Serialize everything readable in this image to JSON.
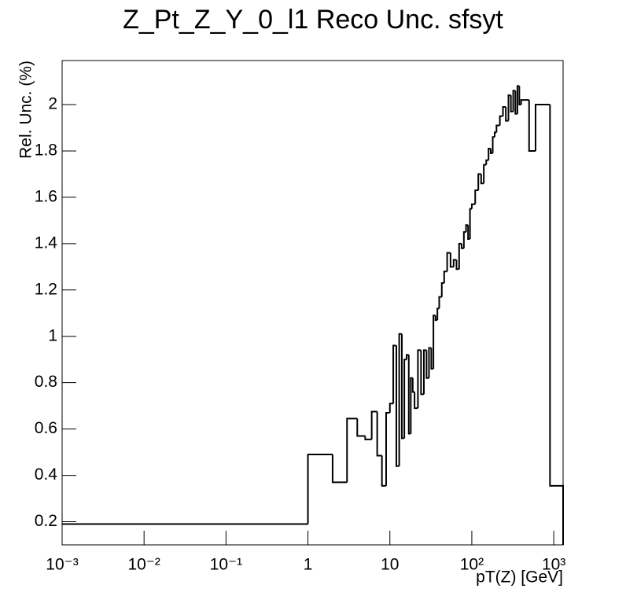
{
  "chart_data": {
    "type": "histogram",
    "title": "Z_Pt_Z_Y_0_l1 Reco Unc. sfsyt",
    "x_label": "pT(Z) [GeV]",
    "y_label": "Rel. Unc. (%)",
    "x_log": true,
    "color": "#000000",
    "bins": [
      0.001,
      1,
      2,
      3,
      4,
      5,
      6,
      7,
      8,
      9,
      10,
      11,
      12,
      13,
      14,
      15,
      16,
      17,
      18,
      19,
      20,
      22,
      24,
      26,
      28,
      30,
      32,
      34,
      36,
      38,
      40,
      43,
      46,
      50,
      55,
      60,
      65,
      70,
      75,
      80,
      85,
      90,
      95,
      100,
      110,
      120,
      130,
      140,
      150,
      160,
      170,
      180,
      190,
      200,
      220,
      240,
      260,
      280,
      300,
      320,
      340,
      360,
      380,
      400,
      450,
      500,
      600,
      900,
      1300
    ],
    "values": [
      0.19,
      0.49,
      0.37,
      0.645,
      0.57,
      0.555,
      0.675,
      0.485,
      0.355,
      0.67,
      0.71,
      0.96,
      0.44,
      1.01,
      0.56,
      0.9,
      0.92,
      0.58,
      0.82,
      0.76,
      0.69,
      0.94,
      0.75,
      0.94,
      0.82,
      0.95,
      0.86,
      1.09,
      1.07,
      1.12,
      1.17,
      1.23,
      1.28,
      1.36,
      1.3,
      1.33,
      1.29,
      1.4,
      1.38,
      1.45,
      1.48,
      1.42,
      1.55,
      1.57,
      1.63,
      1.7,
      1.66,
      1.74,
      1.76,
      1.81,
      1.79,
      1.86,
      1.88,
      1.91,
      1.95,
      1.99,
      1.93,
      2.04,
      1.97,
      2.06,
      1.96,
      2.08,
      2.0,
      2.02,
      2.02,
      1.8,
      2.0,
      0.355
    ],
    "xlim": [
      0.001,
      1300
    ],
    "ylim": [
      0.1,
      2.19
    ],
    "xticks": [
      {
        "value": 0.001,
        "label": "10⁻³"
      },
      {
        "value": 0.01,
        "label": "10⁻²"
      },
      {
        "value": 0.1,
        "label": "10⁻¹"
      },
      1,
      10,
      {
        "value": 100,
        "label": "10²"
      },
      {
        "value": 1000,
        "label": "10³"
      }
    ],
    "yticks": [
      0.2,
      0.4,
      0.6,
      0.8,
      1,
      1.2,
      1.4,
      1.6,
      1.8,
      2
    ]
  }
}
